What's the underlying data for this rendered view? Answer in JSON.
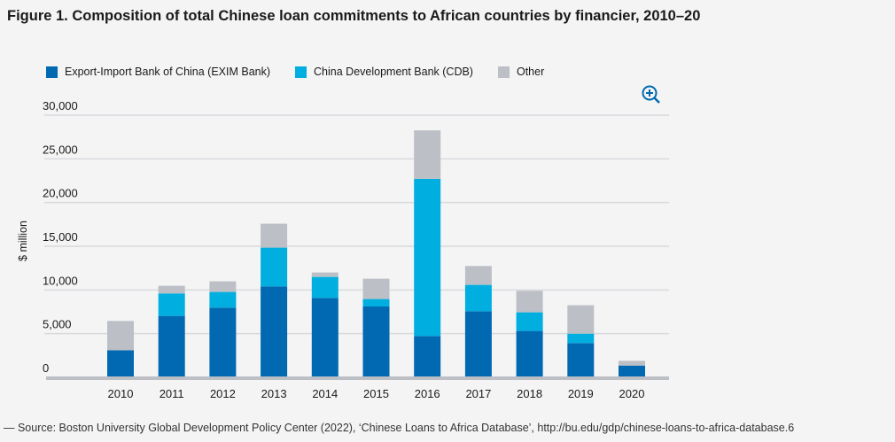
{
  "title": "Figure 1. Composition of total Chinese loan commitments to African countries by financier, 2010–20",
  "source": "— Source: Boston University Global Development Policy Center (2022), ‘Chinese Loans to Africa Database’, http://bu.edu/gdp/chinese-loans-to-africa-database.6",
  "zoom_icon": "zoom-in-icon",
  "chart_data": {
    "type": "bar",
    "stacked": true,
    "title": "Composition of total Chinese loan commitments to African countries by financier, 2010–20",
    "xlabel": "",
    "ylabel": "$ million",
    "ylim": [
      0,
      30000
    ],
    "yticks": [
      0,
      5000,
      10000,
      15000,
      20000,
      25000,
      30000
    ],
    "ytick_labels": [
      "0",
      "5,000",
      "10,000",
      "15,000",
      "20,000",
      "25,000",
      "30,000"
    ],
    "grid": true,
    "legend_position": "top-left",
    "categories": [
      "2010",
      "2011",
      "2012",
      "2013",
      "2014",
      "2015",
      "2016",
      "2017",
      "2018",
      "2019",
      "2020"
    ],
    "series": [
      {
        "name": "Export-Import Bank of China (EXIM Bank)",
        "color": "#0069b1",
        "values": [
          3100,
          7030,
          7980,
          10410,
          9090,
          8110,
          4730,
          7570,
          5310,
          3920,
          1350
        ]
      },
      {
        "name": "China Development Bank (CDB)",
        "color": "#00afe0",
        "values": [
          0,
          2570,
          1790,
          4430,
          2400,
          850,
          17980,
          3010,
          2130,
          1080,
          0
        ]
      },
      {
        "name": "Other",
        "color": "#bcc0c6",
        "values": [
          3350,
          880,
          1220,
          2740,
          510,
          2330,
          5550,
          2160,
          2460,
          3250,
          540
        ]
      }
    ]
  }
}
